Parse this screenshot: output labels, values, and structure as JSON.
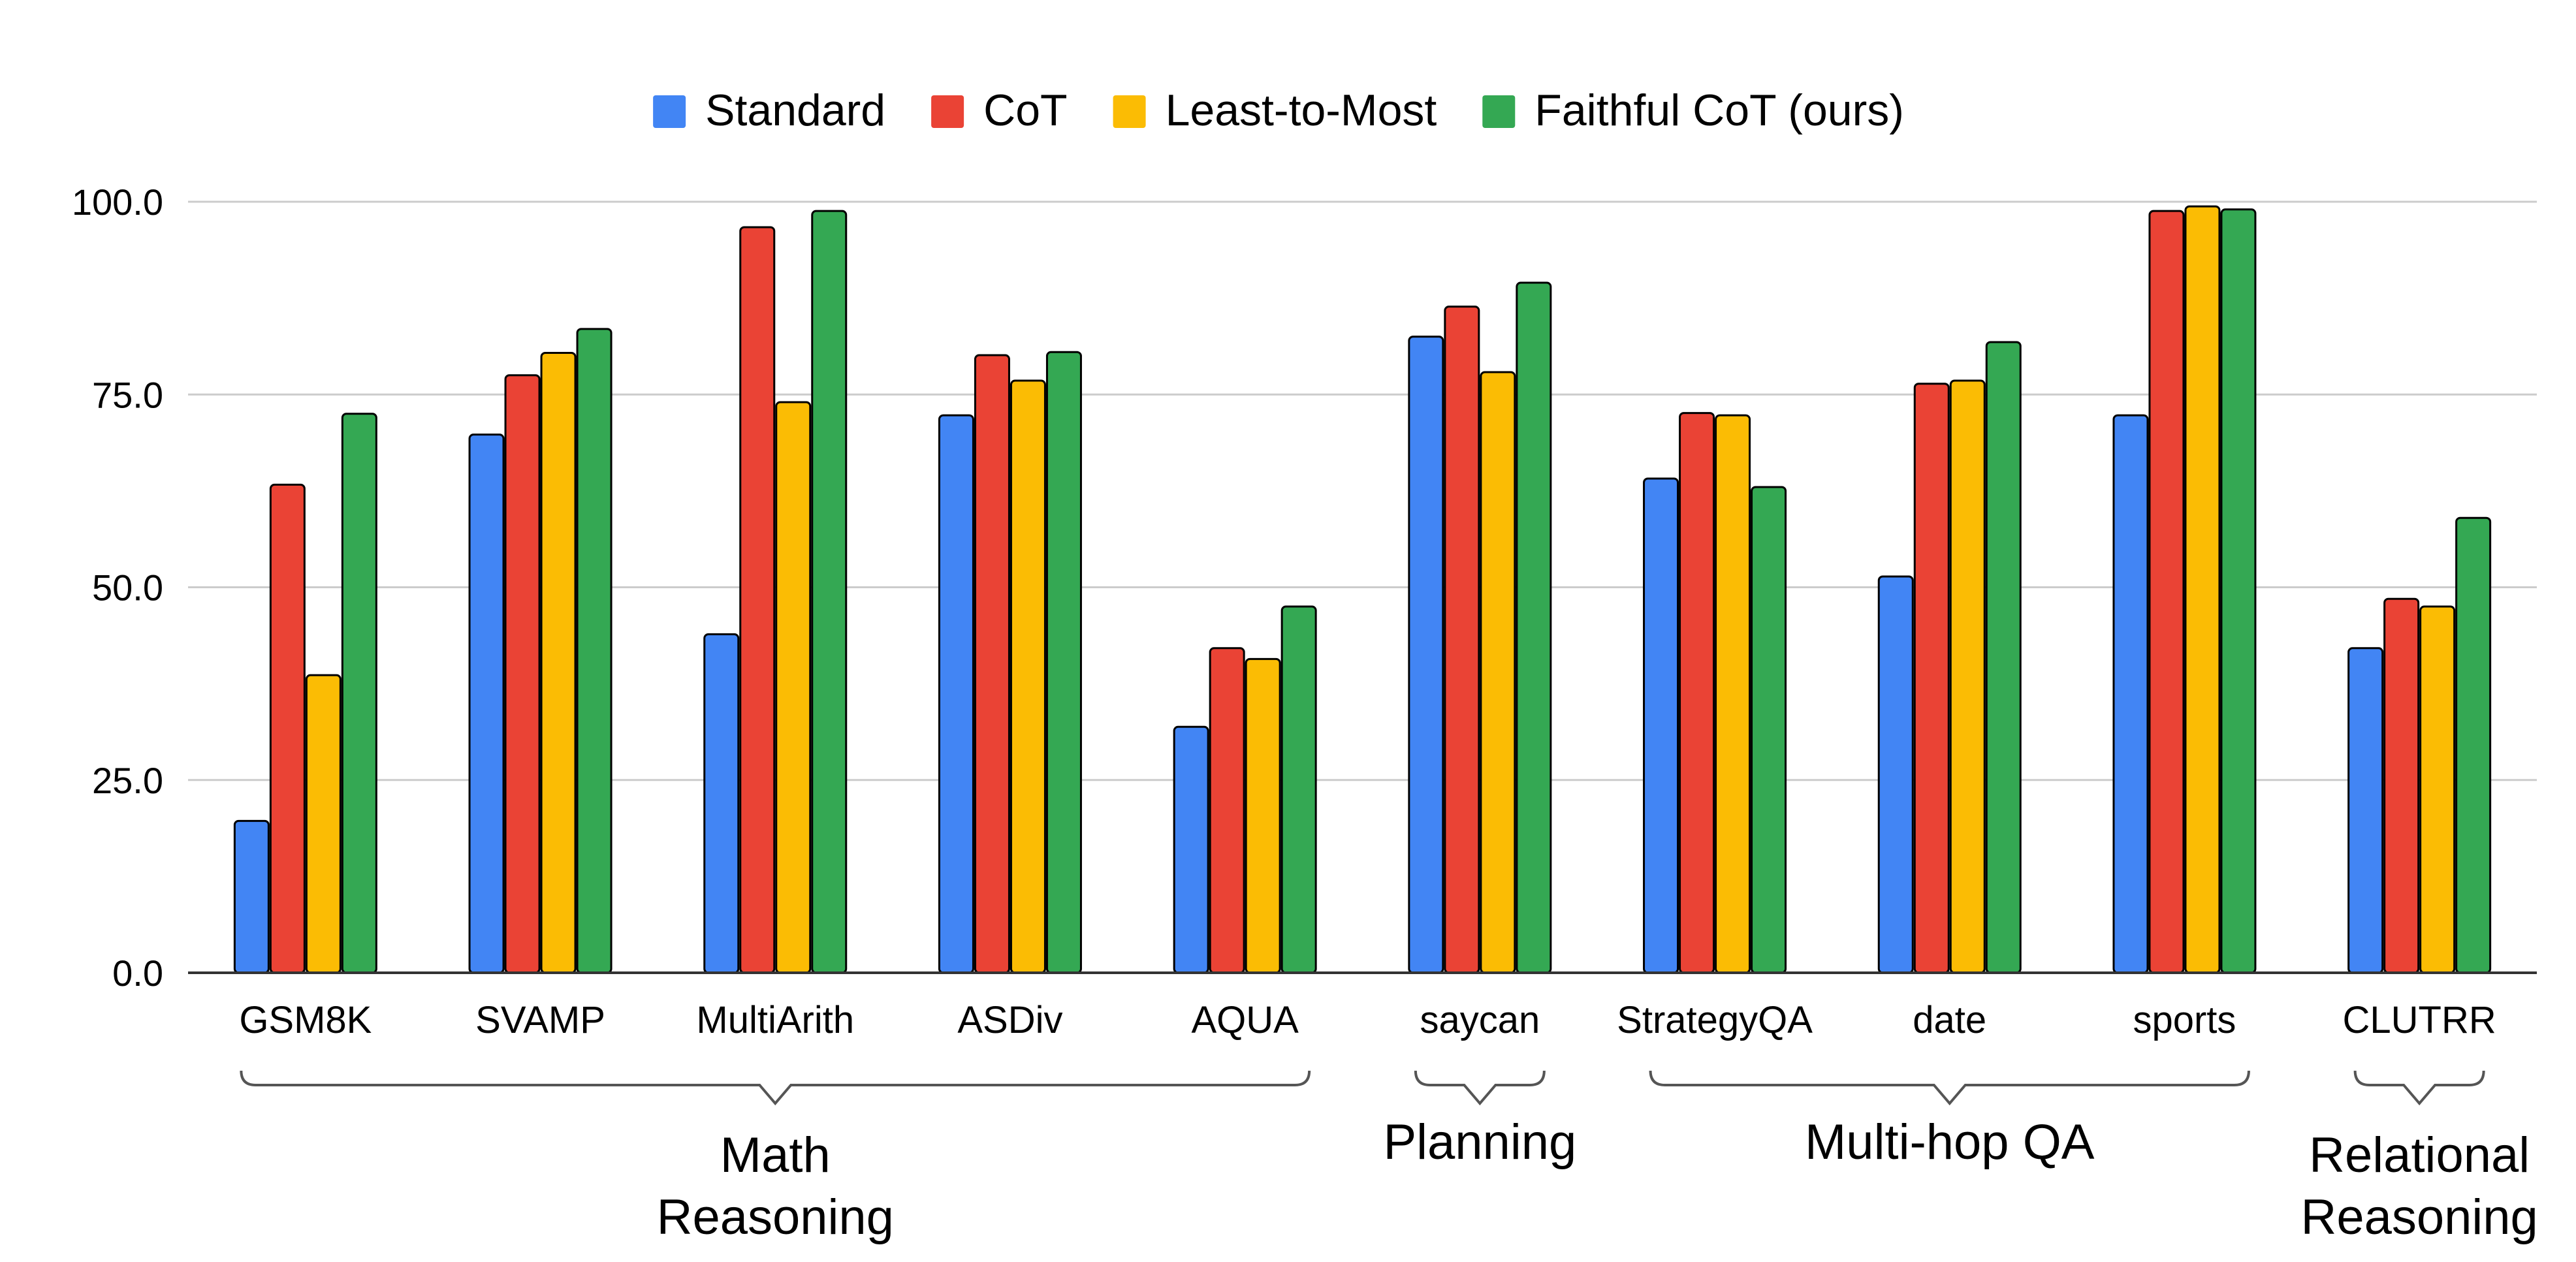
{
  "chart_data": {
    "type": "bar",
    "title": "",
    "xlabel": "",
    "ylabel": "",
    "ylim": [
      0,
      100
    ],
    "yticks": [
      "0.0",
      "25.0",
      "50.0",
      "75.0",
      "100.0"
    ],
    "grid": true,
    "legend_position": "top-center",
    "categories": [
      "GSM8K",
      "SVAMP",
      "MultiArith",
      "ASDiv",
      "AQUA",
      "saycan",
      "StrategyQA",
      "date",
      "sports",
      "CLUTRR"
    ],
    "series": [
      {
        "name": "Standard",
        "color": "#4285F4",
        "values": [
          19.7,
          69.8,
          43.9,
          72.3,
          31.9,
          82.5,
          64.1,
          51.4,
          72.3,
          42.1
        ]
      },
      {
        "name": "CoT",
        "color": "#EA4335",
        "values": [
          63.3,
          77.5,
          96.7,
          80.1,
          42.1,
          86.4,
          72.6,
          76.4,
          98.8,
          48.5
        ]
      },
      {
        "name": "Least-to-Most",
        "color": "#FBBC04",
        "values": [
          38.6,
          80.4,
          74.0,
          76.8,
          40.7,
          77.9,
          72.3,
          76.8,
          99.4,
          47.5
        ]
      },
      {
        "name": "Faithful CoT (ours)",
        "color": "#34A853",
        "values": [
          72.5,
          83.5,
          98.8,
          80.5,
          47.5,
          89.5,
          63.0,
          81.8,
          99.0,
          59.0
        ]
      }
    ],
    "groups": [
      {
        "label_lines": [
          "Math",
          "Reasoning"
        ],
        "from": 0,
        "to": 4
      },
      {
        "label_lines": [
          "Planning"
        ],
        "from": 5,
        "to": 5
      },
      {
        "label_lines": [
          "Multi-hop QA"
        ],
        "from": 6,
        "to": 8
      },
      {
        "label_lines": [
          "Relational",
          "Reasoning"
        ],
        "from": 9,
        "to": 9
      }
    ]
  }
}
